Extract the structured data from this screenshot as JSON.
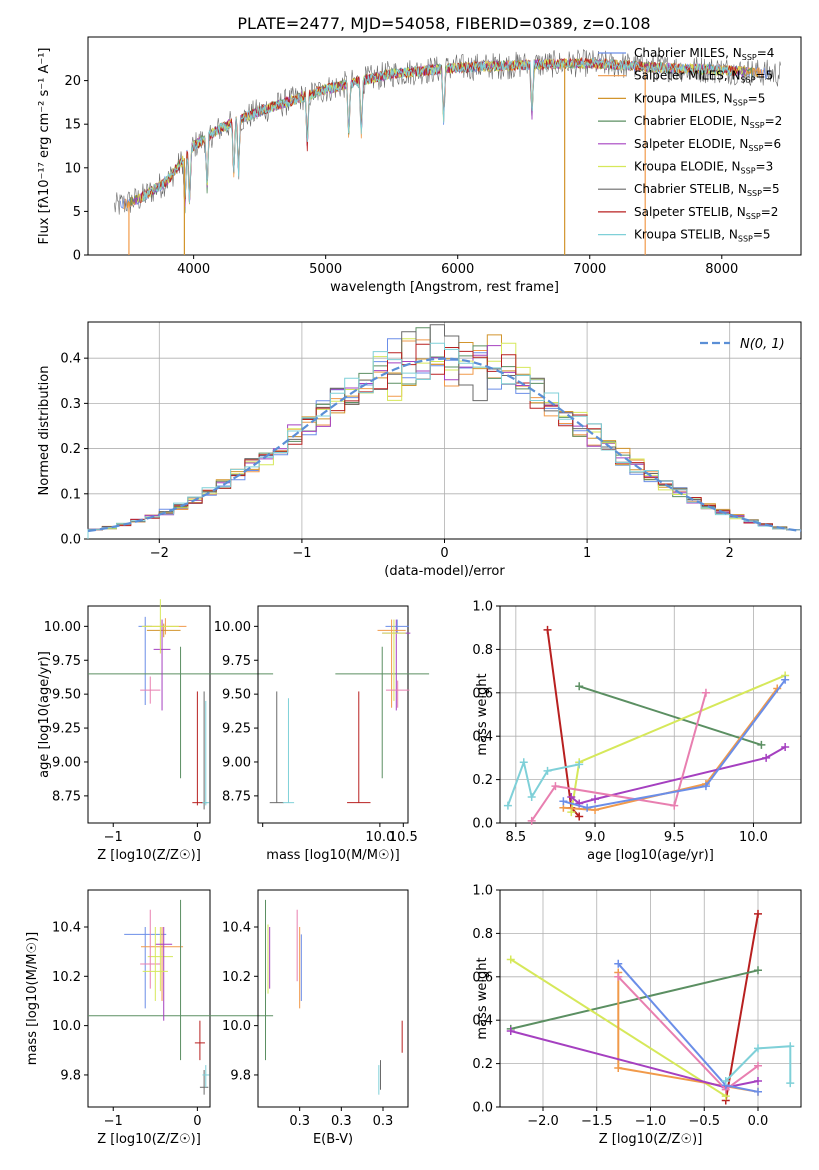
{
  "figure_title": "PLATE=2477, MJD=54058, FIBERID=0389, z=0.108",
  "colors": {
    "chabrier_miles": "#6b8ee8",
    "salpeter_miles": "#f19a4a",
    "kroupa_miles": "#d2952d",
    "chabrier_elodie": "#5b8f62",
    "salpeter_elodie": "#a540c0",
    "kroupa_elodie": "#d6e85a",
    "chabrier_stelib": "#6a6a6a",
    "salpeter_stelib": "#b82020",
    "kroupa_stelib": "#7fd0d8",
    "normal_curve": "#5b8fd6",
    "grid": "#b0b0b0"
  },
  "chart_data": [
    {
      "type": "line",
      "title": "PLATE=2477, MJD=54058, FIBERID=0389, z=0.108",
      "xlabel": "wavelength [Angstrom, rest frame]",
      "ylabel": "Flux [fλ10⁻¹⁷ erg cm⁻² s⁻¹ A⁻¹]",
      "xlim": [
        3200,
        8600
      ],
      "ylim": [
        0,
        25
      ],
      "xticks": [
        4000,
        5000,
        6000,
        7000,
        8000
      ],
      "yticks": [
        0,
        5,
        10,
        15,
        20
      ],
      "grid": false,
      "legend_position": "top-right",
      "series": [
        {
          "name": "Chabrier MILES, N_SSP=4",
          "color_key": "chabrier_miles"
        },
        {
          "name": "Salpeter MILES, N_SSP=5",
          "color_key": "salpeter_miles"
        },
        {
          "name": "Kroupa MILES, N_SSP=5",
          "color_key": "kroupa_miles"
        },
        {
          "name": "Chabrier ELODIE, N_SSP=2",
          "color_key": "chabrier_elodie"
        },
        {
          "name": "Salpeter ELODIE, N_SSP=6",
          "color_key": "salpeter_elodie"
        },
        {
          "name": "Kroupa ELODIE, N_SSP=3",
          "color_key": "kroupa_elodie"
        },
        {
          "name": "Chabrier STELIB, N_SSP=5",
          "color_key": "chabrier_stelib"
        },
        {
          "name": "Salpeter STELIB, N_SSP=2",
          "color_key": "salpeter_stelib"
        },
        {
          "name": "Kroupa STELIB, N_SSP=5",
          "color_key": "kroupa_stelib"
        }
      ],
      "continuum": {
        "x": [
          3400,
          3600,
          3800,
          4000,
          4200,
          4500,
          5000,
          5500,
          6000,
          6500,
          7000,
          7500,
          8000,
          8400
        ],
        "y": [
          5.5,
          6.5,
          8.5,
          12.5,
          14.5,
          16.5,
          19.0,
          20.8,
          21.5,
          21.8,
          22.0,
          21.5,
          21.2,
          20.8
        ]
      },
      "dips": [
        3934,
        3969,
        4102,
        4304,
        4340,
        4861,
        5175,
        5270,
        5893,
        6563
      ]
    },
    {
      "type": "bar",
      "title": "",
      "xlabel": "(data-model)/error",
      "ylabel": "Normed distribution",
      "xlim": [
        -2.5,
        2.5
      ],
      "ylim": [
        0,
        0.48
      ],
      "xticks": [
        -2,
        -1,
        0,
        1,
        2
      ],
      "yticks": [
        0.0,
        0.1,
        0.2,
        0.3,
        0.4
      ],
      "grid": true,
      "legend_position": "top-right",
      "legend": [
        "N(0, 1)"
      ],
      "bin_width": 0.1,
      "bin_start": -2.5,
      "normal": {
        "mean": 0,
        "sigma": 1
      }
    },
    {
      "type": "scatter",
      "title": "",
      "xlabel": "Z [log10(Z/Z☉)]",
      "ylabel": "age  [log10(age/yr)]",
      "xlim": [
        -1.3,
        0.15
      ],
      "ylim": [
        8.55,
        10.15
      ],
      "xticks": [
        -1,
        0
      ],
      "yticks": [
        8.75,
        9.0,
        9.25,
        9.5,
        9.75,
        10.0
      ],
      "grid": false,
      "points": [
        {
          "x": -0.62,
          "y": 10.0,
          "xerr": 0.08,
          "yerr": 0.05,
          "color_key": "chabrier_miles",
          "ylo": 9.42,
          "yhi": 10.07
        },
        {
          "x": -0.38,
          "y": 10.0,
          "xerr": 0.25,
          "yerr": 0.06,
          "color_key": "salpeter_miles"
        },
        {
          "x": -0.4,
          "y": 9.97,
          "xerr": 0.2,
          "yerr": 0.05,
          "color_key": "kroupa_miles"
        },
        {
          "x": -0.2,
          "y": 9.65,
          "xerr": 1.1,
          "yerr": 0.2,
          "color_key": "chabrier_elodie",
          "ylo": 8.88,
          "yhi": 9.85
        },
        {
          "x": -0.42,
          "y": 9.83,
          "xerr": 0.1,
          "yerr": 0.4,
          "color_key": "salpeter_elodie",
          "ylo": 9.38,
          "yhi": 10.05
        },
        {
          "x": -0.44,
          "y": 10.0,
          "xerr": 0.22,
          "yerr": 0.2,
          "color_key": "kroupa_elodie"
        },
        {
          "x": 0.08,
          "y": 8.7,
          "xerr": 0.04,
          "yerr": 0.05,
          "color_key": "chabrier_stelib",
          "ylo": 8.65,
          "yhi": 9.52
        },
        {
          "x": 0.0,
          "y": 8.7,
          "xerr": 0.06,
          "yerr": 0.05,
          "color_key": "salpeter_stelib",
          "ylo": 8.68,
          "yhi": 9.52
        },
        {
          "x": 0.1,
          "y": 8.7,
          "xerr": 0.04,
          "yerr": 0.05,
          "color_key": "kroupa_stelib",
          "ylo": 8.68,
          "yhi": 9.45
        },
        {
          "x": -0.56,
          "y": 9.53,
          "xerr": 0.12,
          "yerr": 0.1,
          "color_key": "pink"
        }
      ]
    },
    {
      "type": "scatter",
      "title": "",
      "xlabel": "mass [log10(M/M☉)]",
      "ylabel": "",
      "xlim": [
        7.4,
        10.6
      ],
      "ylim": [
        8.55,
        10.15
      ],
      "xticks": [
        7.5,
        10.0,
        10.5
      ],
      "yticks": [
        8.75,
        9.0,
        9.25,
        9.5,
        9.75,
        10.0
      ],
      "grid": false
    },
    {
      "type": "line",
      "title": "",
      "xlabel": "age  [log10(age/yr)]",
      "ylabel": "mass weight",
      "xlim": [
        8.4,
        10.3
      ],
      "ylim": [
        0.0,
        1.0
      ],
      "xticks": [
        8.5,
        9.0,
        9.5,
        10.0
      ],
      "yticks": [
        0.0,
        0.2,
        0.4,
        0.6,
        0.8,
        1.0
      ],
      "grid": true,
      "series": [
        {
          "color_key": "salpeter_stelib",
          "x": [
            8.7,
            8.85,
            8.9
          ],
          "y": [
            0.89,
            0.07,
            0.03
          ]
        },
        {
          "color_key": "chabrier_elodie",
          "x": [
            8.9,
            10.05
          ],
          "y": [
            0.63,
            0.36
          ]
        },
        {
          "color_key": "kroupa_elodie",
          "x": [
            8.85,
            8.9,
            10.2
          ],
          "y": [
            0.05,
            0.28,
            0.68
          ]
        },
        {
          "color_key": "salpeter_miles",
          "x": [
            8.8,
            9.0,
            9.7,
            10.15
          ],
          "y": [
            0.07,
            0.06,
            0.18,
            0.62
          ]
        },
        {
          "color_key": "salpeter_elodie",
          "x": [
            8.85,
            8.9,
            9.0,
            10.08,
            10.2
          ],
          "y": [
            0.12,
            0.09,
            0.11,
            0.3,
            0.35
          ]
        },
        {
          "color_key": "pink",
          "x": [
            8.6,
            8.75,
            9.5,
            9.7
          ],
          "y": [
            0.01,
            0.17,
            0.08,
            0.6
          ]
        },
        {
          "color_key": "chabrier_miles",
          "x": [
            8.8,
            8.95,
            9.7,
            10.2
          ],
          "y": [
            0.1,
            0.07,
            0.17,
            0.66
          ]
        },
        {
          "color_key": "kroupa_stelib",
          "x": [
            8.45,
            8.55,
            8.6,
            8.7,
            8.9
          ],
          "y": [
            0.08,
            0.28,
            0.12,
            0.24,
            0.27
          ]
        }
      ]
    },
    {
      "type": "scatter",
      "title": "",
      "xlabel": "Z [log10(Z/Z☉)]",
      "ylabel": "mass [log10(M/M☉)]",
      "xlim": [
        -1.3,
        0.15
      ],
      "ylim": [
        9.67,
        10.55
      ],
      "xticks": [
        -1,
        0
      ],
      "yticks": [
        9.8,
        10.0,
        10.2,
        10.4
      ],
      "grid": false
    },
    {
      "type": "scatter",
      "title": "",
      "xlabel": "E(B-V)",
      "ylabel": "",
      "xlim": [
        0.2,
        0.38
      ],
      "ylim": [
        9.67,
        10.55
      ],
      "xticks": [
        0.25,
        0.3,
        0.35
      ],
      "yticks": [
        9.8,
        10.0,
        10.2,
        10.4
      ],
      "grid": false
    },
    {
      "type": "line",
      "title": "",
      "xlabel": "Z [log10(Z/Z☉)]",
      "ylabel": "mass weight",
      "xlim": [
        -2.4,
        0.4
      ],
      "ylim": [
        0.0,
        1.0
      ],
      "xticks": [
        -2.0,
        -1.5,
        -1.0,
        -0.5,
        0.0
      ],
      "yticks": [
        0.0,
        0.2,
        0.4,
        0.6,
        0.8,
        1.0
      ],
      "grid": true,
      "series": [
        {
          "color_key": "salpeter_stelib",
          "x": [
            -0.3,
            0.0
          ],
          "y": [
            0.03,
            0.89
          ]
        },
        {
          "color_key": "chabrier_elodie",
          "x": [
            -2.3,
            0.0
          ],
          "y": [
            0.36,
            0.63
          ]
        },
        {
          "color_key": "kroupa_elodie",
          "x": [
            -2.3,
            -0.3
          ],
          "y": [
            0.68,
            0.05
          ]
        },
        {
          "color_key": "salpeter_miles",
          "x": [
            -1.3,
            -1.3,
            0.0
          ],
          "y": [
            0.62,
            0.18,
            0.07
          ]
        },
        {
          "color_key": "salpeter_elodie",
          "x": [
            -2.3,
            -0.3,
            0.0
          ],
          "y": [
            0.35,
            0.09,
            0.12
          ]
        },
        {
          "color_key": "pink",
          "x": [
            -1.3,
            -0.3,
            0.0
          ],
          "y": [
            0.6,
            0.08,
            0.19
          ]
        },
        {
          "color_key": "chabrier_miles",
          "x": [
            -1.3,
            -0.3,
            0.0
          ],
          "y": [
            0.66,
            0.1,
            0.07
          ]
        },
        {
          "color_key": "kroupa_stelib",
          "x": [
            -0.3,
            0.0,
            0.3,
            0.3
          ],
          "y": [
            0.12,
            0.27,
            0.28,
            0.11
          ]
        }
      ]
    }
  ]
}
